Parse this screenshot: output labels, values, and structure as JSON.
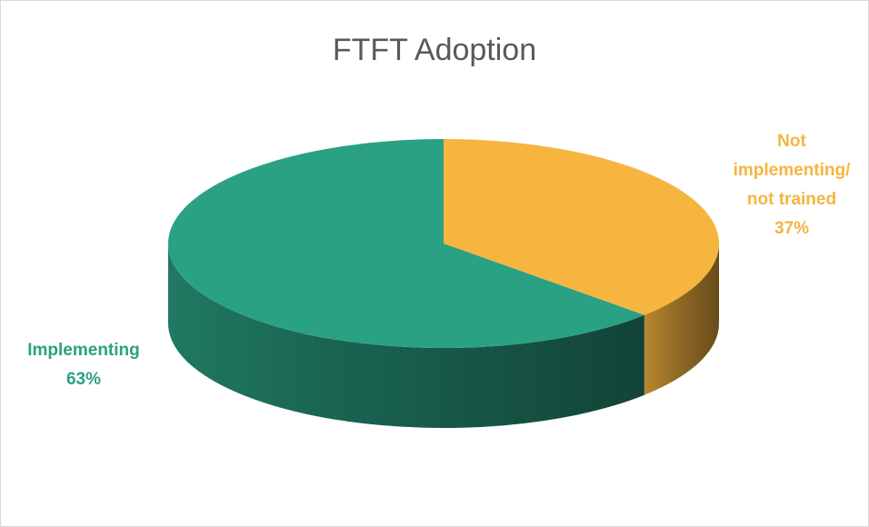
{
  "chart_data": {
    "type": "pie",
    "title": "FTFT Adoption",
    "categories": [
      "Implementing",
      "Not implementing/ not trained"
    ],
    "values": [
      63,
      37
    ],
    "value_labels": [
      "63%",
      "37%"
    ],
    "colors": [
      "#2aa183",
      "#f5b53f"
    ]
  }
}
